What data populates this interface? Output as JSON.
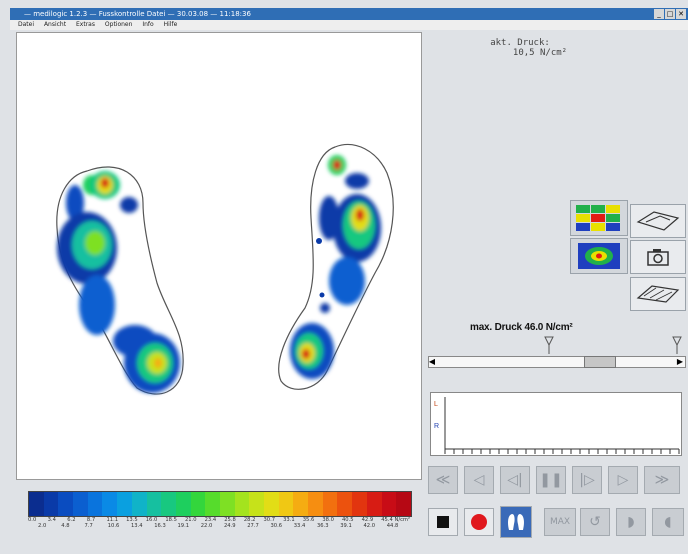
{
  "window": {
    "title": "— medilogic 1.2.3 — Fusskontrolle Datei — 30.03.08 — 11:18:36",
    "menu": [
      "Datei",
      "Ansicht",
      "Extras",
      "Optionen",
      "Info",
      "Hilfe"
    ],
    "controls": [
      "_",
      "□",
      "✕"
    ]
  },
  "readout": {
    "label": "akt. Druck:",
    "value": "10,5 N/cm²"
  },
  "max_pressure": "max. Druck 46.0 N/cm²",
  "graph": {
    "left_label": "L",
    "right_label": "R"
  },
  "scale": {
    "colors": [
      "#0b2d8f",
      "#0a3aa8",
      "#0a4cc0",
      "#0b5fd0",
      "#0a74dd",
      "#0a8ae6",
      "#0aa0e0",
      "#10b3c8",
      "#16c0a0",
      "#18c880",
      "#1ecf5e",
      "#33d63c",
      "#56dc2c",
      "#7ee024",
      "#a4e31e",
      "#c6e21a",
      "#e2dd16",
      "#f0c814",
      "#f5ac12",
      "#f68e11",
      "#f2700f",
      "#ec520e",
      "#e2350f",
      "#d71c14",
      "#c80c16",
      "#b60814"
    ],
    "top_ticks": [
      "0.0",
      "3.4",
      "6.2",
      "8.7",
      "11.1",
      "13.5",
      "16.0",
      "18.5",
      "21.0",
      "23.4",
      "25.8",
      "28.2",
      "30.7",
      "33.1",
      "35.6",
      "38.0",
      "40.5",
      "42.9",
      "45.4 N/cm²"
    ],
    "bottom_ticks": [
      "2.0",
      "4.8",
      "7.7",
      "10.6",
      "13.4",
      "16.3",
      "19.1",
      "22.0",
      "24.9",
      "27.7",
      "30.6",
      "33.4",
      "36.3",
      "39.1",
      "42.0",
      "44.8"
    ]
  },
  "playback": {
    "row1": [
      "rewind-start",
      "step-back",
      "step-back-frame",
      "pause",
      "step-forward-frame",
      "play",
      "fast-forward"
    ],
    "row2": [
      "stop",
      "record",
      "feet-view",
      "max",
      "reset",
      "left-foot",
      "right-foot"
    ]
  },
  "row2_labels": {
    "max": "MAX"
  }
}
